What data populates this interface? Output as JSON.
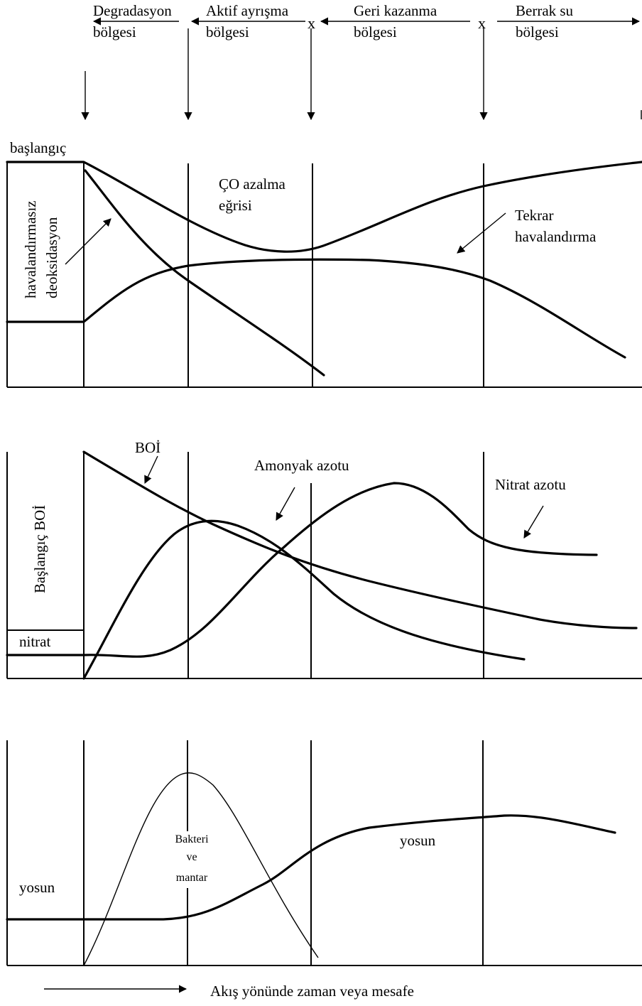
{
  "zones": {
    "degradation_label_1": "Degradasyon",
    "degradation_label_2": "bölgesi",
    "active_label_1": "Aktif ayrışma",
    "active_label_2": "bölgesi",
    "recovery_label_1": "Geri kazanma",
    "recovery_label_2": "bölgesi",
    "clear_label_1": "Berrak su",
    "clear_label_2": "bölgesi",
    "boundary_mark": "x"
  },
  "oxygen_panel": {
    "start_label": "başlangıç",
    "deox_label_1": "havalandırmasız",
    "deox_label_2": "deoksidasyon",
    "sag_label_1": "ÇO azalma",
    "sag_label_2": "eğrisi",
    "reaeration_label_1": "Tekrar",
    "reaeration_label_2": "havalandırma"
  },
  "nitrogen_panel": {
    "bod_label": "BOİ",
    "initial_bod_label": "Başlangıç BOİ",
    "ammonia_label": "Amonyak azotu",
    "nitrate_n_label": "Nitrat azotu",
    "nitrate_label": "nitrat"
  },
  "biota_panel": {
    "algae_left_label": "yosun",
    "algae_right_label": "yosun",
    "bacteria_label_1": "Bakteri",
    "bacteria_label_2": "ve",
    "bacteria_label_3": "mantar"
  },
  "footer": {
    "flow_label": "Akış yönünde zaman veya mesafe"
  }
}
